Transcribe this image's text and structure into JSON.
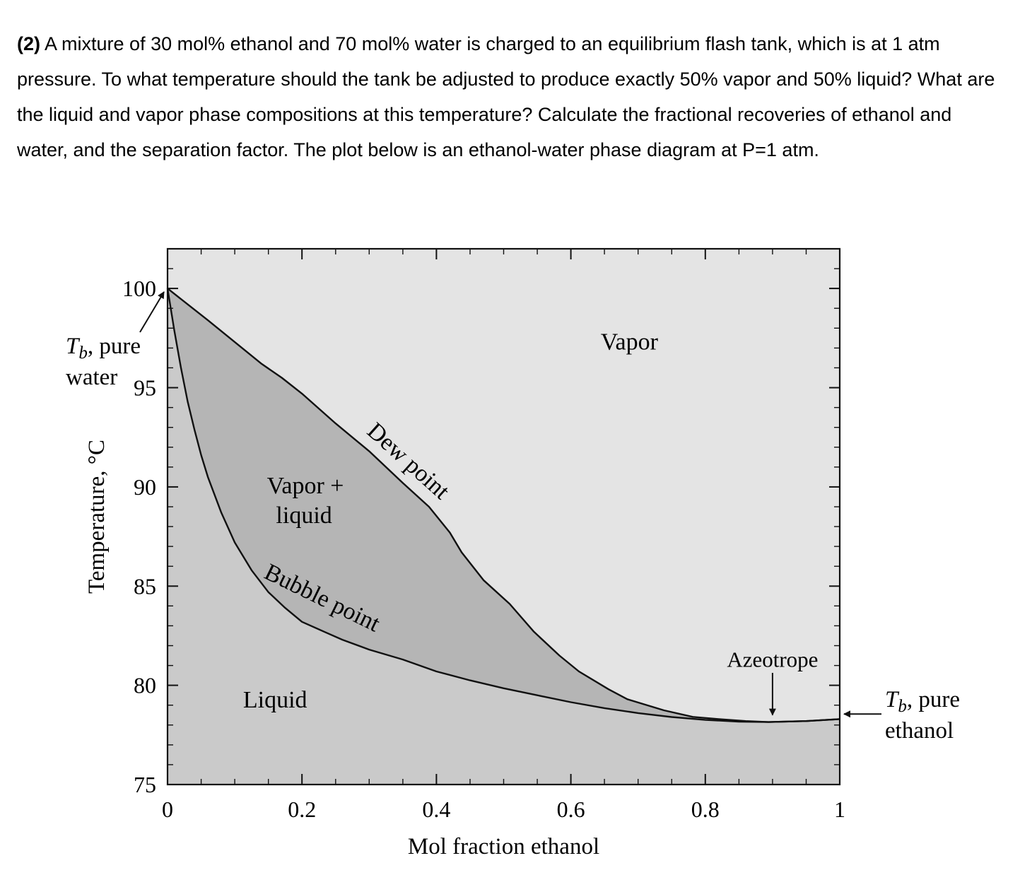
{
  "problem": {
    "number": "(2)",
    "text": " A mixture of 30 mol% ethanol and 70 mol% water is charged to an equilibrium flash tank, which is at 1 atm pressure. To what temperature should the tank be adjusted to produce exactly 50% vapor and 50% liquid? What are the liquid and vapor phase compositions at this temperature? Calculate the fractional recoveries of ethanol and water, and the separation factor. The plot below is an ethanol-water phase diagram at P=1 atm."
  },
  "chart_data": {
    "type": "line",
    "title": "Ethanol-water phase diagram at P=1 atm",
    "xlabel": "Mol fraction ethanol",
    "ylabel": "Temperature, °C",
    "xlim": [
      0,
      1
    ],
    "ylim": [
      75,
      102
    ],
    "x_major_ticks": [
      0,
      0.2,
      0.4,
      0.6,
      0.8,
      1
    ],
    "x_tick_labels": [
      "0",
      "0.2",
      "0.4",
      "0.6",
      "0.8",
      "1"
    ],
    "x_minor_step": 0.05,
    "y_major_ticks": [
      75,
      80,
      85,
      90,
      95,
      100
    ],
    "y_tick_labels": [
      "75",
      "80",
      "85",
      "90",
      "95",
      "100"
    ],
    "y_minor_step": 1,
    "grid": false,
    "legend": "none",
    "colors": {
      "vapor_region": "#e4e4e4",
      "two_phase_region": "#b5b5b5",
      "liquid_region": "#cacaca",
      "line": "#111111",
      "text": "#000000",
      "background": "#ffffff"
    },
    "series": [
      {
        "name": "Bubble point",
        "x": [
          0,
          0.01,
          0.02,
          0.03,
          0.04,
          0.05,
          0.06,
          0.08,
          0.1,
          0.125,
          0.15,
          0.175,
          0.2,
          0.233,
          0.26,
          0.3,
          0.35,
          0.4,
          0.45,
          0.5,
          0.55,
          0.6,
          0.65,
          0.7,
          0.75,
          0.8,
          0.85,
          0.894,
          0.95,
          1.0
        ],
        "t": [
          100,
          97.9,
          96.0,
          94.3,
          92.9,
          91.6,
          90.5,
          88.7,
          87.2,
          85.8,
          84.7,
          83.9,
          83.2,
          82.7,
          82.3,
          81.8,
          81.3,
          80.7,
          80.25,
          79.85,
          79.5,
          79.15,
          78.85,
          78.6,
          78.4,
          78.26,
          78.17,
          78.15,
          78.2,
          78.3
        ]
      },
      {
        "name": "Dew point",
        "x": [
          0,
          0.03,
          0.06,
          0.1,
          0.14,
          0.17,
          0.2,
          0.25,
          0.3,
          0.35,
          0.389,
          0.42,
          0.4375,
          0.47,
          0.509,
          0.545,
          0.583,
          0.612,
          0.656,
          0.684,
          0.7385,
          0.7815,
          0.82,
          0.86,
          0.894,
          0.95,
          1.0
        ],
        "t": [
          100,
          99.2,
          98.4,
          97.3,
          96.2,
          95.5,
          94.7,
          93.2,
          91.8,
          90.2,
          89.0,
          87.7,
          86.7,
          85.3,
          84.1,
          82.7,
          81.5,
          80.7,
          79.8,
          79.3,
          78.74,
          78.41,
          78.3,
          78.2,
          78.15,
          78.2,
          78.3
        ]
      }
    ],
    "azeotrope": {
      "x": 0.9,
      "t": 78.15
    },
    "annotations": [
      {
        "text": "Vapor",
        "x": 0.687,
        "t": 97.3,
        "rot": 0,
        "size": 34
      },
      {
        "text": "Vapor +",
        "x": 0.205,
        "t": 90.05,
        "rot": 0,
        "size": 34
      },
      {
        "text": "liquid",
        "x": 0.203,
        "t": 88.55,
        "rot": 0,
        "size": 34
      },
      {
        "text": "Dew point",
        "x": 0.358,
        "t": 91.3,
        "rot": 42,
        "size": 34
      },
      {
        "text": "Bubble point",
        "x": 0.23,
        "t": 84.4,
        "rot": 26,
        "size": 34
      },
      {
        "text": "Liquid",
        "x": 0.16,
        "t": 79.25,
        "rot": 0,
        "size": 34
      },
      {
        "text": "Azeotrope",
        "x": 0.9,
        "t": 81.3,
        "rot": 0,
        "size": 31
      }
    ],
    "side_labels": {
      "pure_water": {
        "prefix": "T",
        "sub": "b",
        "suffix": ", pure",
        "line2": "water"
      },
      "pure_ethanol": {
        "prefix": "T",
        "sub": "b",
        "suffix": ", pure",
        "line2": "ethanol"
      }
    }
  }
}
